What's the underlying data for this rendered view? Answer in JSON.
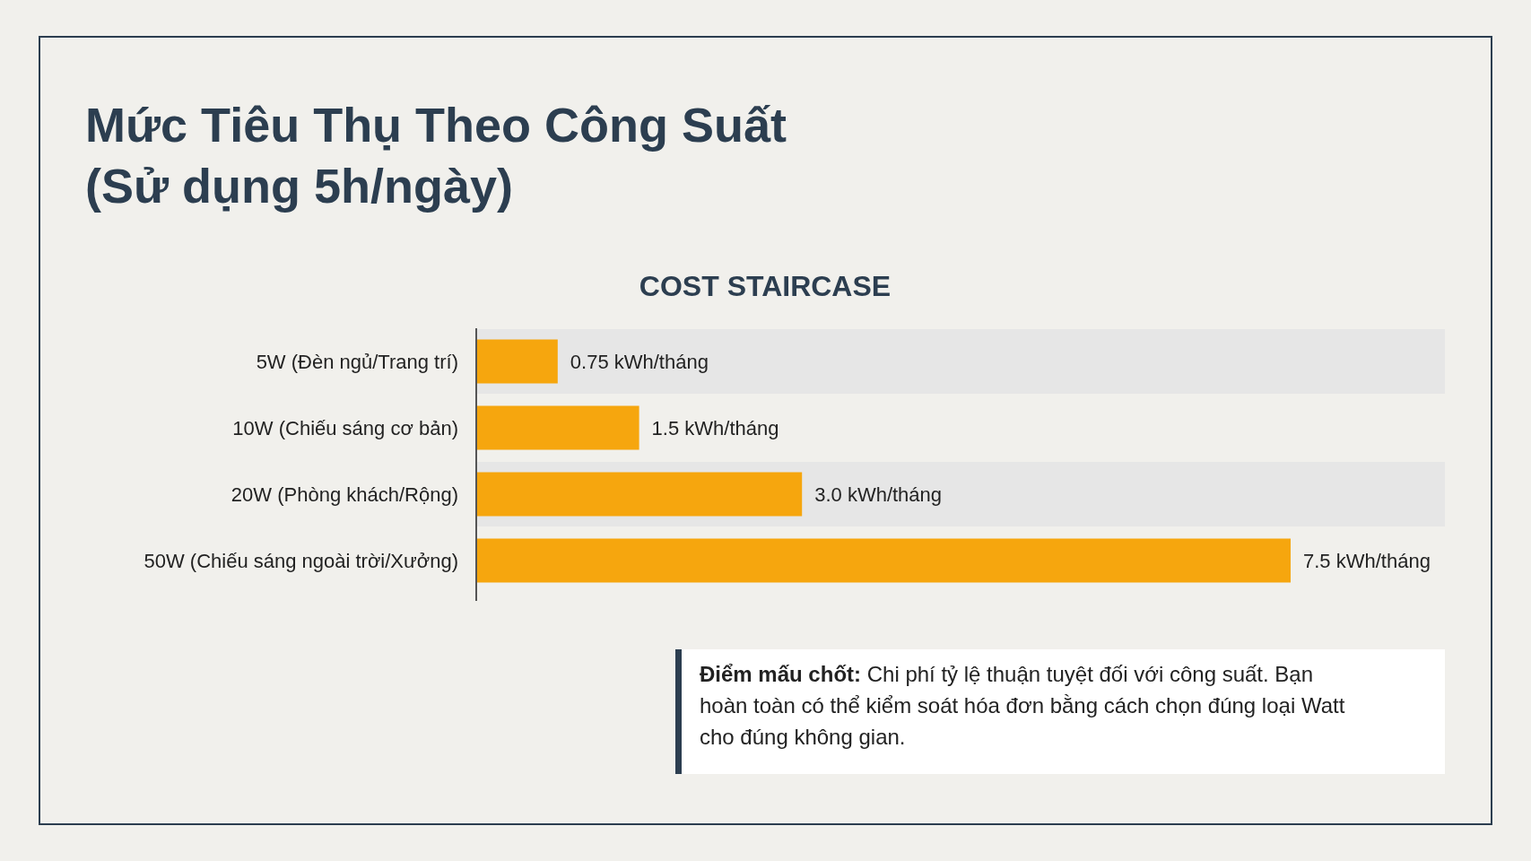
{
  "chart_data": {
    "type": "bar",
    "orientation": "horizontal",
    "title": "Mức Tiêu Thụ Theo Công Suất\n(Sử dụng 5h/ngày)",
    "subtitle": "COST STAIRCASE",
    "categories": [
      "5W (Đèn ngủ/Trang trí)",
      "10W (Chiếu sáng cơ bản)",
      "20W (Phòng khách/Rộng)",
      "50W (Chiếu sáng ngoài trời/Xưởng)"
    ],
    "values": [
      0.75,
      1.5,
      3.0,
      7.5
    ],
    "value_labels": [
      "0.75 kWh/tháng",
      "1.5 kWh/tháng",
      "3.0 kWh/tháng",
      "7.5 kWh/tháng"
    ],
    "color": "#f6a60e",
    "annotations": [
      "Điểm mấu chốt: Chi phí tỷ lệ thuận tuyệt đối với công suất. Bạn hoàn toàn có thể kiểm soát hóa đơn bằng cách chọn đúng loại Watt cho đúng không gian."
    ]
  }
}
